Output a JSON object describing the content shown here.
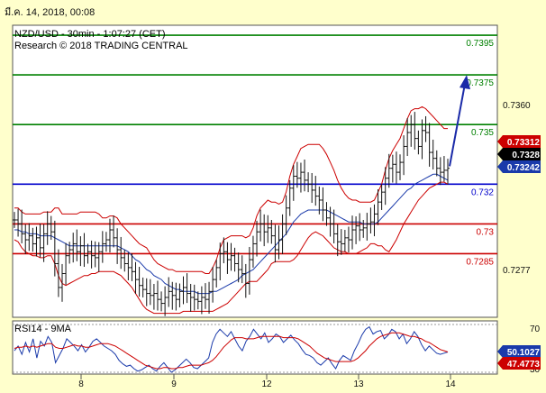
{
  "header": {
    "timestamp": "มี.ค. 14, 2018, 00:08"
  },
  "chart_data": {
    "type": "candlestick",
    "title": "NZD/USD - 30min - 1:07:27 (CET)",
    "subtitle": "Research © 2018 TRADING CENTRAL",
    "ylim": [
      0.7253,
      0.74
    ],
    "x_tick_labels": [
      "8",
      "9",
      "12",
      "13",
      "14"
    ],
    "y_tick_labels": [
      "0.7360",
      "0.7277"
    ],
    "levels": [
      {
        "value": 0.7395,
        "label": "0.7395",
        "color": "#008000"
      },
      {
        "value": 0.7375,
        "label": "0.7375",
        "color": "#008000"
      },
      {
        "value": 0.735,
        "label": "0.735",
        "color": "#008000"
      },
      {
        "value": 0.732,
        "label": "0.732",
        "color": "#0000cc"
      },
      {
        "value": 0.73,
        "label": "0.73",
        "color": "#cc0000"
      },
      {
        "value": 0.7285,
        "label": "0.7285",
        "color": "#cc0000"
      }
    ],
    "price_badges": [
      {
        "value": 0.73312,
        "label": "0.73312",
        "color": "#cc0000"
      },
      {
        "value": 0.7328,
        "label": "0.7328",
        "color": "#000000"
      },
      {
        "value": 0.73242,
        "label": "0.73242",
        "color": "#1a3aaa"
      }
    ],
    "forecast_arrow": {
      "from": 0.7329,
      "to": 0.7375
    },
    "price_series": [
      0.7302,
      0.73,
      0.7295,
      0.7292,
      0.7294,
      0.729,
      0.7293,
      0.7288,
      0.7295,
      0.73,
      0.7296,
      0.728,
      0.7268,
      0.7275,
      0.7284,
      0.7287,
      0.729,
      0.7286,
      0.7289,
      0.7284,
      0.7286,
      0.7284,
      0.7283,
      0.7286,
      0.729,
      0.7292,
      0.7297,
      0.7293,
      0.7287,
      0.7283,
      0.728,
      0.7278,
      0.7276,
      0.7272,
      0.7269,
      0.7267,
      0.7265,
      0.7264,
      0.7265,
      0.7262,
      0.726,
      0.7263,
      0.7266,
      0.7264,
      0.7262,
      0.7266,
      0.7268,
      0.7265,
      0.7263,
      0.7262,
      0.7261,
      0.7263,
      0.7262,
      0.7266,
      0.7272,
      0.7278,
      0.7285,
      0.7286,
      0.7282,
      0.7284,
      0.728,
      0.7277,
      0.7275,
      0.727,
      0.7282,
      0.729,
      0.7296,
      0.73,
      0.7296,
      0.7298,
      0.7294,
      0.7287,
      0.7292,
      0.73,
      0.7308,
      0.7318,
      0.7324,
      0.7323,
      0.7326,
      0.7322,
      0.732,
      0.7317,
      0.7314,
      0.7312,
      0.7307,
      0.7303,
      0.73,
      0.7295,
      0.7291,
      0.729,
      0.7293,
      0.7292,
      0.7297,
      0.7299,
      0.7297,
      0.7298,
      0.73,
      0.7301,
      0.7305,
      0.7311,
      0.7316,
      0.7323,
      0.7328,
      0.733,
      0.7326,
      0.7331,
      0.7339,
      0.7346,
      0.735,
      0.7343,
      0.7339,
      0.7347,
      0.7346,
      0.7336,
      0.7333,
      0.7328,
      0.7326,
      0.7327,
      0.7328
    ],
    "bb_upper": [
      0.7308,
      0.7308,
      0.7306,
      0.7305,
      0.7305,
      0.7305,
      0.7305,
      0.7305,
      0.7306,
      0.7306,
      0.7306,
      0.7308,
      0.7308,
      0.7305,
      0.7305,
      0.7305,
      0.7305,
      0.7305,
      0.7306,
      0.7306,
      0.7306,
      0.7306,
      0.7306,
      0.7305,
      0.7303,
      0.7303,
      0.7304,
      0.7304,
      0.7303,
      0.73,
      0.7298,
      0.7296,
      0.7294,
      0.7292,
      0.729,
      0.7289,
      0.7288,
      0.7285,
      0.7282,
      0.728,
      0.7279,
      0.7278,
      0.7277,
      0.7277,
      0.7276,
      0.7276,
      0.7276,
      0.7276,
      0.7276,
      0.7276,
      0.7276,
      0.7276,
      0.7275,
      0.7275,
      0.7278,
      0.7282,
      0.7288,
      0.7292,
      0.7293,
      0.7294,
      0.7294,
      0.7294,
      0.7294,
      0.7293,
      0.7294,
      0.7298,
      0.7304,
      0.7308,
      0.731,
      0.7312,
      0.7311,
      0.7311,
      0.731,
      0.7311,
      0.7316,
      0.7324,
      0.733,
      0.7334,
      0.7338,
      0.7339,
      0.734,
      0.734,
      0.734,
      0.734,
      0.7338,
      0.7335,
      0.7331,
      0.7327,
      0.7322,
      0.7318,
      0.7315,
      0.7313,
      0.7312,
      0.7312,
      0.7311,
      0.7311,
      0.7311,
      0.7311,
      0.7312,
      0.7316,
      0.732,
      0.7327,
      0.7333,
      0.7337,
      0.734,
      0.7343,
      0.7348,
      0.7353,
      0.7357,
      0.7358,
      0.7358,
      0.7359,
      0.7358,
      0.7356,
      0.7354,
      0.7352,
      0.735,
      0.7348,
      0.7348
    ],
    "bb_lower": [
      0.7292,
      0.7291,
      0.7288,
      0.7286,
      0.7285,
      0.7284,
      0.7284,
      0.7283,
      0.7283,
      0.7284,
      0.7284,
      0.728,
      0.7274,
      0.727,
      0.7269,
      0.727,
      0.7271,
      0.7272,
      0.7273,
      0.7274,
      0.7274,
      0.7275,
      0.7275,
      0.7276,
      0.7276,
      0.7276,
      0.7276,
      0.7276,
      0.7275,
      0.7274,
      0.7272,
      0.727,
      0.7268,
      0.7265,
      0.7262,
      0.7259,
      0.7257,
      0.7256,
      0.7255,
      0.7255,
      0.7255,
      0.7255,
      0.7255,
      0.7255,
      0.7255,
      0.7255,
      0.7256,
      0.7256,
      0.7256,
      0.7256,
      0.7256,
      0.7256,
      0.7256,
      0.7256,
      0.7256,
      0.7257,
      0.7258,
      0.7259,
      0.726,
      0.7262,
      0.7264,
      0.7266,
      0.7268,
      0.727,
      0.7271,
      0.7271,
      0.7271,
      0.7273,
      0.7275,
      0.7277,
      0.728,
      0.7281,
      0.7281,
      0.7281,
      0.7281,
      0.7281,
      0.7282,
      0.7284,
      0.7287,
      0.729,
      0.7293,
      0.7295,
      0.7296,
      0.7295,
      0.7294,
      0.7292,
      0.729,
      0.7288,
      0.7287,
      0.7286,
      0.7286,
      0.7285,
      0.7285,
      0.7285,
      0.7286,
      0.7287,
      0.7288,
      0.729,
      0.729,
      0.7289,
      0.7289,
      0.7287,
      0.7286,
      0.7289,
      0.7292,
      0.7296,
      0.73,
      0.7303,
      0.7306,
      0.7309,
      0.7312,
      0.7314,
      0.7316,
      0.7318,
      0.7319,
      0.732,
      0.7321,
      0.7321,
      0.732
    ],
    "ma_mid": [
      0.7297,
      0.7297,
      0.7296,
      0.7296,
      0.7295,
      0.7295,
      0.7295,
      0.7294,
      0.7294,
      0.7294,
      0.7294,
      0.7293,
      0.7292,
      0.7291,
      0.729,
      0.7289,
      0.7289,
      0.7289,
      0.7289,
      0.7289,
      0.7289,
      0.7289,
      0.7289,
      0.7289,
      0.7289,
      0.7289,
      0.7289,
      0.7289,
      0.7289,
      0.7288,
      0.7287,
      0.7286,
      0.7284,
      0.7282,
      0.7281,
      0.7279,
      0.7277,
      0.7276,
      0.7274,
      0.7273,
      0.7272,
      0.727,
      0.7269,
      0.7268,
      0.7267,
      0.7267,
      0.7266,
      0.7266,
      0.7266,
      0.7266,
      0.7265,
      0.7265,
      0.7265,
      0.7265,
      0.7266,
      0.7266,
      0.7267,
      0.7268,
      0.7269,
      0.727,
      0.7271,
      0.7272,
      0.7274,
      0.7275,
      0.7276,
      0.7277,
      0.7279,
      0.7281,
      0.7283,
      0.7285,
      0.7287,
      0.7289,
      0.7291,
      0.7293,
      0.7295,
      0.7298,
      0.7301,
      0.7303,
      0.7305,
      0.7306,
      0.7307,
      0.7307,
      0.7307,
      0.7307,
      0.7307,
      0.7307,
      0.7306,
      0.7305,
      0.7304,
      0.7303,
      0.7302,
      0.7301,
      0.7301,
      0.7301,
      0.7301,
      0.73,
      0.73,
      0.73,
      0.73,
      0.7301,
      0.7303,
      0.7305,
      0.7307,
      0.7309,
      0.7311,
      0.7313,
      0.7315,
      0.7317,
      0.7318,
      0.732,
      0.7321,
      0.7322,
      0.7323,
      0.7324,
      0.7325,
      0.7325,
      0.7324,
      0.7323,
      0.7322
    ],
    "rsi_panel": {
      "title": "RSI14 - 9MA",
      "ylim": [
        30,
        70
      ],
      "y_tick_labels": [
        "70",
        "30"
      ],
      "badges": [
        {
          "value": 50.1027,
          "label": "50.1027",
          "color": "#1a3aaa"
        },
        {
          "value": 47.4773,
          "label": "47.4773",
          "color": "#cc0000"
        }
      ],
      "rsi": [
        48,
        52,
        45,
        55,
        47,
        58,
        42,
        56,
        52,
        60,
        55,
        38,
        44,
        50,
        58,
        55,
        52,
        48,
        53,
        47,
        51,
        56,
        58,
        55,
        52,
        50,
        48,
        45,
        40,
        37,
        35,
        36,
        33,
        31,
        32,
        34,
        36,
        33,
        31,
        35,
        38,
        34,
        30,
        32,
        35,
        38,
        41,
        38,
        34,
        33,
        36,
        39,
        42,
        55,
        62,
        66,
        63,
        60,
        64,
        58,
        52,
        48,
        56,
        60,
        66,
        62,
        58,
        63,
        55,
        58,
        62,
        60,
        55,
        58,
        61,
        57,
        54,
        49,
        45,
        44,
        42,
        38,
        36,
        39,
        42,
        37,
        33,
        40,
        44,
        42,
        40,
        48,
        54,
        61,
        66,
        68,
        62,
        64,
        65,
        58,
        61,
        66,
        64,
        58,
        62,
        54,
        58,
        64,
        60,
        53,
        48,
        52,
        49,
        46,
        45,
        46,
        47
      ],
      "ma": [
        50,
        51,
        51,
        52,
        51,
        52,
        51,
        52,
        53,
        54,
        54,
        51,
        50,
        50,
        51,
        52,
        53,
        52,
        52,
        51,
        51,
        52,
        53,
        54,
        54,
        54,
        53,
        52,
        50,
        48,
        46,
        44,
        42,
        40,
        38,
        36,
        35,
        34,
        33,
        33,
        34,
        34,
        33,
        33,
        34,
        34,
        35,
        36,
        36,
        36,
        36,
        37,
        38,
        40,
        43,
        47,
        51,
        54,
        57,
        59,
        59,
        59,
        58,
        58,
        58,
        59,
        60,
        60,
        60,
        60,
        60,
        60,
        59,
        59,
        59,
        59,
        58,
        56,
        54,
        52,
        49,
        46,
        44,
        42,
        41,
        40,
        39,
        39,
        39,
        39,
        39,
        40,
        42,
        45,
        48,
        52,
        55,
        58,
        60,
        61,
        62,
        63,
        63,
        63,
        62,
        61,
        60,
        60,
        59,
        58,
        56,
        55,
        53,
        51,
        49,
        48,
        47
      ]
    }
  }
}
